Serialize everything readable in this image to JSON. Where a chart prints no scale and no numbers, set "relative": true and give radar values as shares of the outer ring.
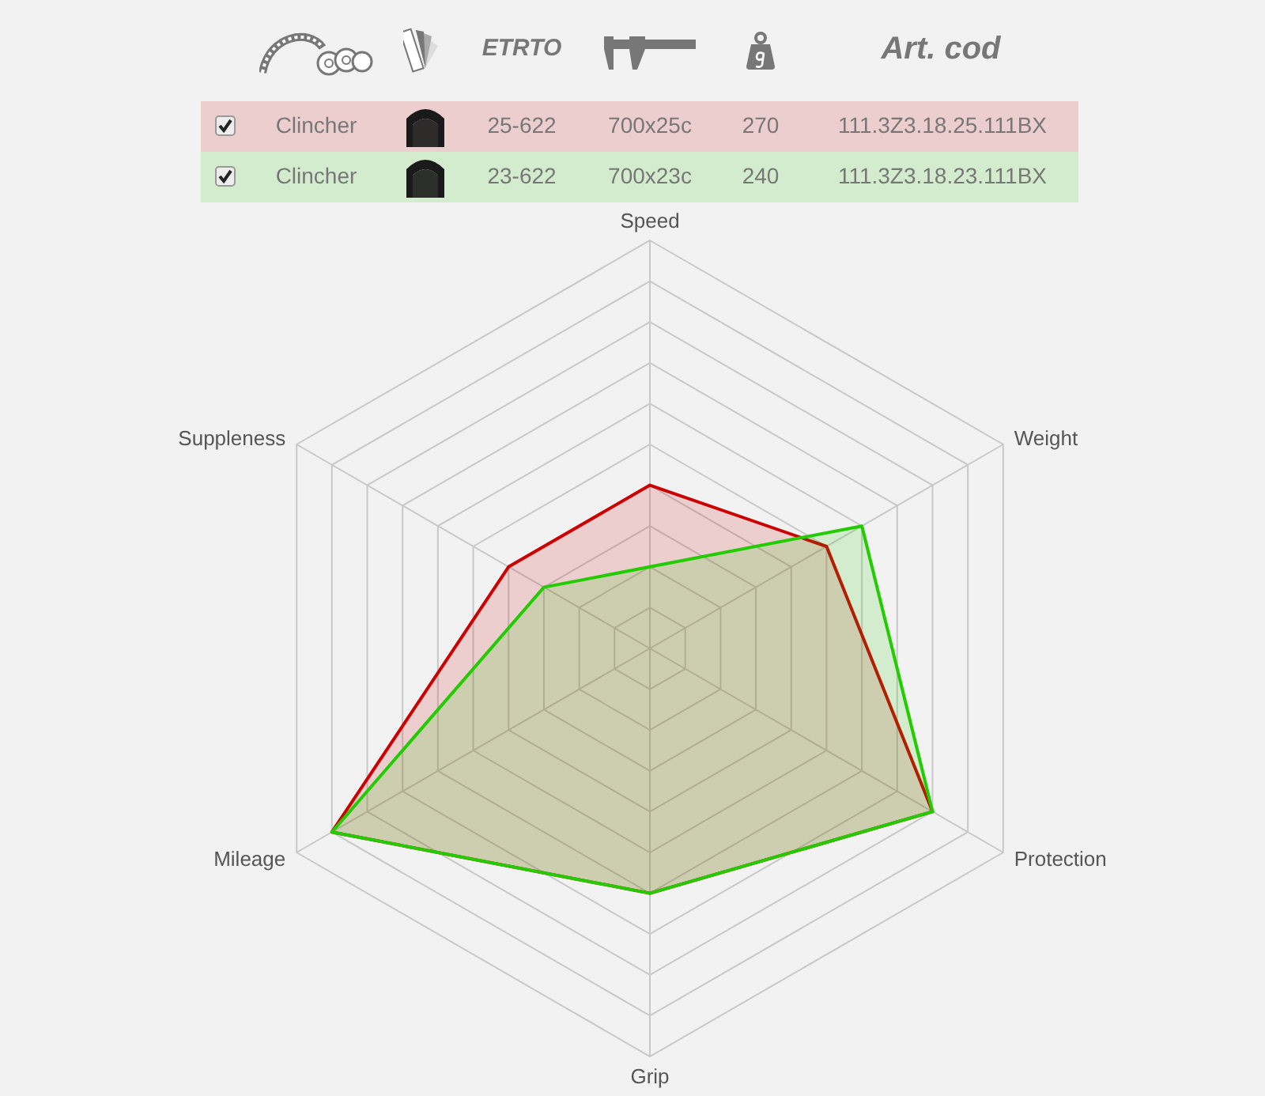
{
  "chart_data": {
    "type": "radar",
    "relative": true,
    "grid": true,
    "categories": [
      "Speed",
      "Weight",
      "Protection",
      "Grip",
      "Mileage",
      "Suppleness"
    ],
    "series": [
      {
        "color": "#cc0000",
        "values": [
          0.4,
          0.5,
          0.8,
          0.6,
          0.9,
          0.4
        ]
      },
      {
        "color": "#22cc00",
        "values": [
          0.2,
          0.6,
          0.8,
          0.6,
          0.9,
          0.3
        ]
      }
    ],
    "annotations": [
      "ETRTO",
      "Art. cod",
      "Clincher",
      "25-622",
      "700x25c",
      "270",
      "111.3Z3.18.25.111BX",
      "Clincher",
      "23-622",
      "700x23c",
      "240",
      "111.3Z3.18.23.111BX"
    ]
  }
}
